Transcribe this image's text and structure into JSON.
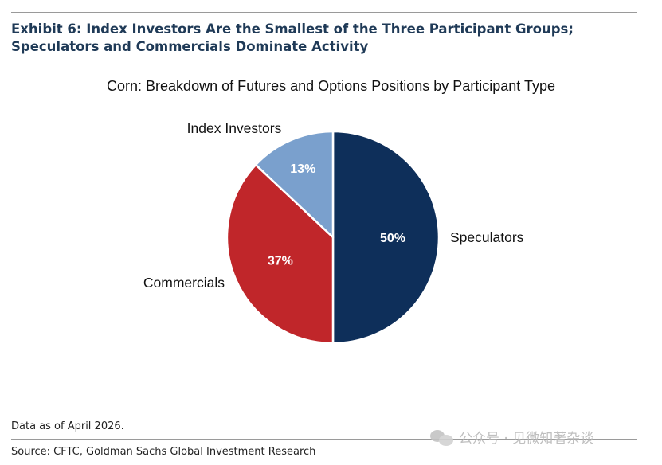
{
  "header": {
    "exhibit_title": "Exhibit 6: Index Investors Are the Smallest of the Three Participant Groups; Speculators and Commercials Dominate Activity"
  },
  "chart_data": {
    "type": "pie",
    "title": "Corn: Breakdown of Futures and Options Positions by Participant Type",
    "slices": [
      {
        "label": "Speculators",
        "value": 50,
        "value_label": "50%",
        "color": "#0e2f5a"
      },
      {
        "label": "Commercials",
        "value": 37,
        "value_label": "37%",
        "color": "#c0262a"
      },
      {
        "label": "Index Investors",
        "value": 13,
        "value_label": "13%",
        "color": "#7aa0cd"
      }
    ],
    "start": "12 o'clock",
    "direction": "clockwise"
  },
  "footer": {
    "note": "Data as of April 2026.",
    "source": "Source: CFTC, Goldman Sachs Global Investment Research",
    "watermark": "公众号 · 见微知著杂谈"
  }
}
